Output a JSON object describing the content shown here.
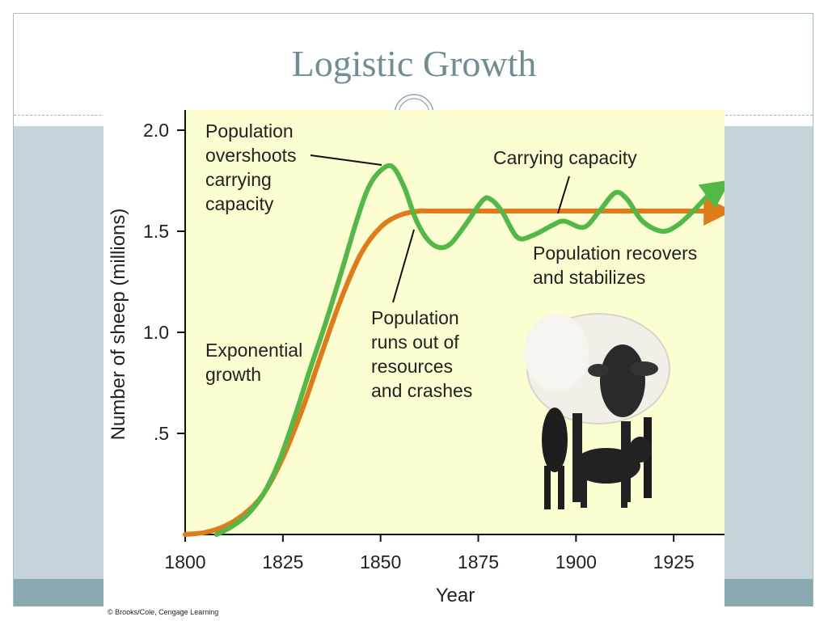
{
  "slide": {
    "title": "Logistic Growth",
    "credit": "© Brooks/Cole, Cengage Learning"
  },
  "colors": {
    "plot_bg": "#fdfdd2",
    "population": "#52b848",
    "carrying_capacity": "#e07b1a",
    "accent": "#6e8d94"
  },
  "chart_data": {
    "type": "line",
    "xlabel": "Year",
    "ylabel": "Number of sheep (millions)",
    "xlim": [
      1800,
      1938
    ],
    "ylim": [
      0,
      2.1
    ],
    "x_ticks": [
      1800,
      1825,
      1850,
      1875,
      1900,
      1925
    ],
    "y_ticks": [
      {
        "value": 0.5,
        "label": ".5"
      },
      {
        "value": 1.0,
        "label": "1.0"
      },
      {
        "value": 1.5,
        "label": "1.5"
      },
      {
        "value": 2.0,
        "label": "2.0"
      }
    ],
    "grid": false,
    "legend": "none",
    "series": [
      {
        "key": "population",
        "points": [
          [
            1808,
            0
          ],
          [
            1812,
            0.04
          ],
          [
            1816,
            0.1
          ],
          [
            1820,
            0.2
          ],
          [
            1824,
            0.36
          ],
          [
            1828,
            0.58
          ],
          [
            1832,
            0.82
          ],
          [
            1836,
            1.05
          ],
          [
            1840,
            1.3
          ],
          [
            1844,
            1.56
          ],
          [
            1847,
            1.72
          ],
          [
            1850,
            1.8
          ],
          [
            1853,
            1.82
          ],
          [
            1856,
            1.72
          ],
          [
            1859,
            1.56
          ],
          [
            1862,
            1.46
          ],
          [
            1865,
            1.42
          ],
          [
            1868,
            1.44
          ],
          [
            1872,
            1.54
          ],
          [
            1876,
            1.65
          ],
          [
            1878,
            1.66
          ],
          [
            1881,
            1.6
          ],
          [
            1885,
            1.47
          ],
          [
            1889,
            1.48
          ],
          [
            1894,
            1.53
          ],
          [
            1897,
            1.55
          ],
          [
            1902,
            1.52
          ],
          [
            1906,
            1.6
          ],
          [
            1910,
            1.69
          ],
          [
            1913,
            1.66
          ],
          [
            1917,
            1.55
          ],
          [
            1922,
            1.5
          ],
          [
            1926,
            1.53
          ],
          [
            1930,
            1.6
          ],
          [
            1934,
            1.68
          ],
          [
            1937,
            1.72
          ]
        ]
      },
      {
        "key": "carrying_capacity",
        "points": [
          [
            1800,
            0
          ],
          [
            1805,
            0.01
          ],
          [
            1810,
            0.04
          ],
          [
            1815,
            0.1
          ],
          [
            1820,
            0.2
          ],
          [
            1825,
            0.38
          ],
          [
            1830,
            0.62
          ],
          [
            1835,
            0.9
          ],
          [
            1840,
            1.17
          ],
          [
            1845,
            1.39
          ],
          [
            1850,
            1.52
          ],
          [
            1855,
            1.58
          ],
          [
            1860,
            1.6
          ],
          [
            1865,
            1.6
          ],
          [
            1900,
            1.6
          ],
          [
            1937,
            1.6
          ]
        ]
      }
    ],
    "annotations": [
      {
        "key": "overshoot",
        "lines": [
          "Population",
          "overshoots",
          "carrying",
          "capacity"
        ]
      },
      {
        "key": "carrying",
        "lines": [
          "Carrying capacity"
        ]
      },
      {
        "key": "recovers",
        "lines": [
          "Population recovers",
          "and stabilizes"
        ]
      },
      {
        "key": "crashes",
        "lines": [
          "Population",
          "runs out of",
          "resources",
          "and crashes"
        ]
      },
      {
        "key": "exponential",
        "lines": [
          "Exponential",
          "growth"
        ]
      }
    ]
  }
}
